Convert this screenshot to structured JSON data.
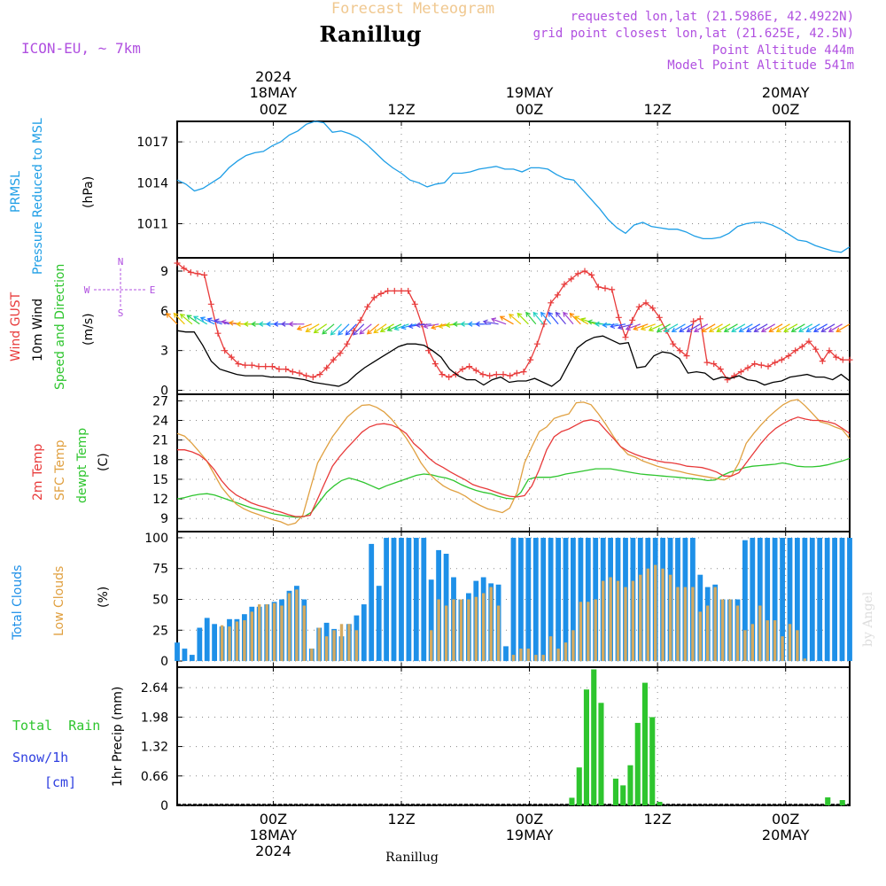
{
  "header": {
    "product": "Forecast Meteogram",
    "location": "Ranillug",
    "model": "ICON-EU, ~ 7km",
    "requested": "requested lon,lat (21.5986E, 42.4922N)",
    "grid_point": "grid point closest lon,lat (21.625E, 42.5N)",
    "point_altitude": "Point Altitude 444m",
    "model_altitude": "Model Point Altitude 541m"
  },
  "footer": {
    "location": "Ranillug",
    "watermark": "by Angel"
  },
  "time_axis": {
    "year": "2024",
    "days": [
      {
        "date": "18MAY",
        "hour": "00Z",
        "show_year": true
      },
      {
        "date": "19MAY",
        "hour": "00Z",
        "show_year": false
      },
      {
        "date": "20MAY",
        "hour": "00Z",
        "show_year": false
      }
    ],
    "noon_label": "12Z",
    "range_hours": [
      -9,
      54
    ]
  },
  "panels": {
    "pressure": {
      "label": "PRMSL",
      "sublabel": "Pressure Reduced to MSL",
      "unit": "(hPa)"
    },
    "wind": {
      "gust_label": "Wind GUST",
      "wind_label": "10m Wind",
      "dir_label": "Speed and Direction",
      "unit": "(m/s)",
      "compass": {
        "n": "N",
        "s": "S",
        "w": "W",
        "e": "E"
      }
    },
    "temp": {
      "t2m_label": "2m Temp",
      "sfc_label": "SFC Temp",
      "dew_label": "dewpt Temp",
      "unit": "(C)"
    },
    "clouds": {
      "total_label": "Total Clouds",
      "low_label": "Low Clouds",
      "unit": "(%)"
    },
    "precip": {
      "rain_label": "Total  Rain",
      "snow_label": "Snow/1h",
      "snow_unit": "[cm]",
      "unit": "1hr Precip (mm)"
    }
  },
  "colors": {
    "pressure": "#1e9ee6",
    "gust": "#e83a3a",
    "wind": "#000000",
    "t2m": "#e83a3a",
    "sfc": "#e0a040",
    "dew": "#2ec52e",
    "total_clouds": "#1e90e8",
    "low_clouds": "#d4aa60",
    "rain": "#2ec52e",
    "purple": "#b050e0",
    "label_blue": "#3040e0"
  },
  "chart_data": [
    {
      "type": "line",
      "title": "PRMSL Pressure Reduced to MSL",
      "ylabel": "(hPa)",
      "ylim": [
        1008.5,
        1018.5
      ],
      "yticks": [
        1011,
        1014,
        1017
      ],
      "x_hours_start": -9,
      "x_step": 1,
      "series": [
        {
          "name": "PRMSL",
          "values": [
            1014.2,
            1013.9,
            1013.4,
            1013.6,
            1014.0,
            1014.4,
            1015.1,
            1015.6,
            1016.0,
            1016.2,
            1016.3,
            1016.7,
            1017.0,
            1017.5,
            1017.8,
            1018.3,
            1018.5,
            1018.4,
            1017.7,
            1017.8,
            1017.6,
            1017.3,
            1016.8,
            1016.2,
            1015.6,
            1015.1,
            1014.7,
            1014.2,
            1014.0,
            1013.7,
            1013.9,
            1014.0,
            1014.7,
            1014.7,
            1014.8,
            1015.0,
            1015.1,
            1015.2,
            1015.0,
            1015.0,
            1014.8,
            1015.1,
            1015.1,
            1015.0,
            1014.6,
            1014.3,
            1014.2,
            1013.5,
            1012.8,
            1012.1,
            1011.3,
            1010.7,
            1010.3,
            1010.9,
            1011.1,
            1010.8,
            1010.7,
            1010.6,
            1010.6,
            1010.4,
            1010.1,
            1009.9,
            1009.9,
            1010.0,
            1010.3,
            1010.8,
            1011.0,
            1011.1,
            1011.1,
            1010.9,
            1010.6,
            1010.2,
            1009.8,
            1009.7,
            1009.4,
            1009.2,
            1009.0,
            1008.9,
            1009.3
          ]
        }
      ]
    },
    {
      "type": "line",
      "title": "Wind GUST / 10m Wind Speed and Direction",
      "ylabel": "(m/s)",
      "ylim": [
        -0.3,
        10
      ],
      "yticks": [
        0,
        3,
        6,
        9
      ],
      "x_hours_start": -9,
      "x_step": 1,
      "series": [
        {
          "name": "Wind GUST",
          "values": [
            9.6,
            9.2,
            8.9,
            8.8,
            8.7,
            6.5,
            4.3,
            3.0,
            2.5,
            2.0,
            1.9,
            1.9,
            1.8,
            1.8,
            1.8,
            1.6,
            1.6,
            1.4,
            1.3,
            1.1,
            1.0,
            1.2,
            1.7,
            2.3,
            2.8,
            3.5,
            4.5,
            5.3,
            6.3,
            7.0,
            7.3,
            7.5,
            7.5,
            7.5,
            7.5,
            6.5,
            5.0,
            3.0,
            2.0,
            1.2,
            1.0,
            1.2,
            1.6,
            1.8,
            1.5,
            1.2,
            1.1,
            1.2,
            1.2,
            1.1,
            1.3,
            1.4,
            2.3,
            3.5,
            5.0,
            6.6,
            7.2,
            8.0,
            8.4,
            8.8,
            9.0,
            8.7,
            7.8,
            7.7,
            7.6,
            5.5,
            4.0,
            5.3,
            6.3,
            6.6,
            6.2,
            5.5,
            4.5,
            3.5,
            3.0,
            2.6,
            5.2,
            5.4,
            2.1,
            2.0,
            1.6,
            0.8,
            1.1,
            1.4,
            1.7,
            2.0,
            1.9,
            1.8,
            2.1,
            2.3,
            2.6,
            3.0,
            3.3,
            3.7,
            3.1,
            2.2,
            3.0,
            2.5,
            2.3,
            2.3
          ]
        },
        {
          "name": "10m Wind",
          "values": [
            4.5,
            4.4,
            4.4,
            3.4,
            2.2,
            1.6,
            1.4,
            1.2,
            1.1,
            1.1,
            1.1,
            1.0,
            1.0,
            1.0,
            0.9,
            0.8,
            0.6,
            0.5,
            0.4,
            0.3,
            0.6,
            1.2,
            1.7,
            2.1,
            2.5,
            2.9,
            3.3,
            3.5,
            3.5,
            3.4,
            3.0,
            2.5,
            1.6,
            1.1,
            0.8,
            0.8,
            0.4,
            0.8,
            1.0,
            0.6,
            0.7,
            0.7,
            0.9,
            0.6,
            0.3,
            0.8,
            2.0,
            3.2,
            3.7,
            4.0,
            4.1,
            3.8,
            3.5,
            3.6,
            1.7,
            1.8,
            2.6,
            2.9,
            2.8,
            2.4,
            1.3,
            1.4,
            1.3,
            0.8,
            1.0,
            0.9,
            1.1,
            0.8,
            0.7,
            0.4,
            0.6,
            0.7,
            1.0,
            1.1,
            1.2,
            1.0,
            1.0,
            0.8,
            1.2,
            0.7
          ]
        },
        {
          "name": "10m Wind Direction (arrow heading, deg)",
          "values": [
            315,
            315,
            310,
            305,
            300,
            295,
            290,
            285,
            280,
            275,
            270,
            270,
            270,
            270,
            270,
            270,
            270,
            270,
            250,
            240,
            235,
            230,
            225,
            225,
            225,
            225,
            230,
            230,
            235,
            240,
            245,
            250,
            255,
            260,
            265,
            260,
            255,
            260,
            265,
            270,
            270,
            270,
            270,
            280,
            290,
            300,
            310,
            315,
            320,
            320,
            320,
            320,
            320,
            320,
            315,
            300,
            290,
            280,
            270,
            265,
            260,
            255,
            250,
            250,
            250,
            245,
            240,
            240,
            240,
            240,
            240,
            240,
            240,
            240,
            240,
            240,
            240,
            240,
            240,
            240,
            240,
            240,
            240,
            240,
            240,
            240,
            240,
            240,
            240,
            240,
            240
          ]
        }
      ]
    },
    {
      "type": "line",
      "title": "2m Temp / SFC Temp / dewpt Temp",
      "ylabel": "(C)",
      "ylim": [
        7,
        28
      ],
      "yticks": [
        9,
        12,
        15,
        18,
        21,
        24,
        27
      ],
      "x_hours_start": -9,
      "x_step": 1,
      "series": [
        {
          "name": "2m Temp",
          "values": [
            19.5,
            19.5,
            19.2,
            18.7,
            17.8,
            16.5,
            14.8,
            13.5,
            12.6,
            12.0,
            11.4,
            11.0,
            10.7,
            10.3,
            10.0,
            9.6,
            9.3,
            9.3,
            9.5,
            12.0,
            14.5,
            17.0,
            18.5,
            19.8,
            21.0,
            22.2,
            23.0,
            23.4,
            23.5,
            23.3,
            22.8,
            22.0,
            20.5,
            19.5,
            18.3,
            17.4,
            16.8,
            16.1,
            15.5,
            14.9,
            14.2,
            13.8,
            13.5,
            13.1,
            12.7,
            12.4,
            12.3,
            12.5,
            14.0,
            16.5,
            19.5,
            21.5,
            22.3,
            22.7,
            23.3,
            23.9,
            24.1,
            23.8,
            22.5,
            21.3,
            20.0,
            19.3,
            18.8,
            18.4,
            18.1,
            17.8,
            17.6,
            17.5,
            17.3,
            17.0,
            16.9,
            16.8,
            16.5,
            16.1,
            15.5,
            15.5,
            16.0,
            17.5,
            19.0,
            20.5,
            21.8,
            22.8,
            23.5,
            24.1,
            24.5,
            24.2,
            24.0,
            24.0,
            23.8,
            23.5,
            22.8,
            22.0
          ]
        },
        {
          "name": "SFC Temp",
          "values": [
            22.0,
            21.6,
            20.5,
            19.2,
            17.8,
            15.8,
            13.8,
            12.4,
            11.2,
            10.5,
            10.0,
            9.6,
            9.2,
            8.8,
            8.5,
            8.0,
            8.3,
            9.5,
            13.5,
            17.5,
            19.5,
            21.5,
            23.0,
            24.5,
            25.5,
            26.3,
            26.4,
            26.0,
            25.3,
            24.2,
            22.8,
            21.3,
            19.5,
            17.5,
            16.0,
            14.9,
            14.0,
            13.4,
            13.0,
            12.4,
            11.6,
            11.0,
            10.5,
            10.2,
            9.9,
            10.6,
            13.0,
            17.5,
            20.0,
            22.3,
            23.0,
            24.3,
            24.7,
            25.0,
            26.7,
            26.8,
            26.4,
            25.0,
            23.4,
            21.6,
            20.0,
            18.8,
            18.4,
            17.8,
            17.4,
            17.0,
            16.7,
            16.4,
            16.2,
            15.9,
            15.7,
            15.5,
            15.3,
            15.1,
            14.9,
            15.5,
            17.5,
            20.5,
            22.0,
            23.3,
            24.5,
            25.5,
            26.4,
            27.0,
            27.2,
            26.2,
            25.0,
            23.8,
            23.5,
            23.0,
            22.6,
            21.2
          ]
        },
        {
          "name": "dewpt Temp",
          "values": [
            12.0,
            12.2,
            12.5,
            12.7,
            12.8,
            12.6,
            12.2,
            11.8,
            11.4,
            11.0,
            10.6,
            10.3,
            10.0,
            9.7,
            9.5,
            9.3,
            9.2,
            9.3,
            10.0,
            11.5,
            13.0,
            14.0,
            14.8,
            15.2,
            14.9,
            14.5,
            14.0,
            13.5,
            14.0,
            14.4,
            14.8,
            15.2,
            15.6,
            15.8,
            15.7,
            15.4,
            15.2,
            14.8,
            14.2,
            13.7,
            13.3,
            13.0,
            12.8,
            12.4,
            12.1,
            12.0,
            13.0,
            15.0,
            15.3,
            15.3,
            15.3,
            15.5,
            15.8,
            16.0,
            16.2,
            16.4,
            16.6,
            16.6,
            16.6,
            16.4,
            16.2,
            16.0,
            15.8,
            15.7,
            15.6,
            15.5,
            15.4,
            15.3,
            15.2,
            15.1,
            15.0,
            14.8,
            14.9,
            15.6,
            16.1,
            16.4,
            16.8,
            17.0,
            17.1,
            17.2,
            17.3,
            17.5,
            17.3,
            17.0,
            16.9,
            16.9,
            17.0,
            17.2,
            17.5,
            17.8,
            18.2
          ]
        }
      ]
    },
    {
      "type": "bar",
      "title": "Total Clouds / Low Clouds",
      "ylabel": "(%)",
      "ylim": [
        -5,
        105
      ],
      "yticks": [
        0,
        25,
        50,
        75,
        100
      ],
      "x_hours_start": -9,
      "x_step": 1,
      "series": [
        {
          "name": "Total Clouds",
          "values": [
            15,
            10,
            5,
            27,
            35,
            30,
            28,
            34,
            34,
            38,
            44,
            44,
            46,
            48,
            50,
            57,
            61,
            50,
            10,
            27,
            31,
            26,
            20,
            30,
            37,
            46,
            95,
            61,
            100,
            100,
            100,
            100,
            100,
            100,
            66,
            90,
            87,
            68,
            50,
            55,
            65,
            68,
            63,
            62,
            12,
            100,
            100,
            100,
            100,
            100,
            100,
            100,
            100,
            100,
            100,
            100,
            100,
            100,
            100,
            100,
            100,
            100,
            100,
            100,
            100,
            100,
            100,
            100,
            100,
            100,
            70,
            60,
            62,
            50,
            50,
            50,
            98,
            100,
            100,
            100,
            100,
            100,
            100,
            100,
            100,
            100,
            100,
            100,
            100,
            100,
            100
          ]
        },
        {
          "name": "Low Clouds",
          "values": [
            0,
            0,
            0,
            0,
            0,
            0,
            29,
            28,
            32,
            33,
            40,
            46,
            46,
            47,
            45,
            55,
            58,
            45,
            10,
            27,
            20,
            25,
            30,
            30,
            25,
            0,
            0,
            0,
            0,
            0,
            0,
            0,
            0,
            0,
            25,
            50,
            45,
            50,
            50,
            50,
            52,
            55,
            60,
            45,
            0,
            5,
            10,
            10,
            5,
            5,
            20,
            10,
            15,
            25,
            48,
            48,
            50,
            65,
            68,
            65,
            60,
            65,
            70,
            75,
            78,
            75,
            70,
            60,
            60,
            60,
            40,
            45,
            60,
            50,
            50,
            45,
            25,
            30,
            45,
            33,
            33,
            20,
            30,
            25,
            2,
            0,
            0,
            0,
            0,
            0,
            0
          ]
        }
      ]
    },
    {
      "type": "bar",
      "title": "1hr Precip",
      "ylabel": "1hr Precip (mm)",
      "ylim": [
        0,
        3.1
      ],
      "yticks": [
        0,
        0.66,
        1.32,
        1.98,
        2.64
      ],
      "yticklabels": [
        "0",
        "0.66",
        "1.32",
        "1.98",
        "2.64"
      ],
      "x_hours_start": -9,
      "x_step": 1,
      "series": [
        {
          "name": "Total Rain",
          "values": [
            0,
            0,
            0,
            0,
            0,
            0,
            0,
            0,
            0,
            0,
            0,
            0,
            0,
            0,
            0,
            0,
            0,
            0,
            0,
            0,
            0,
            0,
            0,
            0,
            0,
            0,
            0,
            0,
            0,
            0,
            0,
            0,
            0,
            0,
            0,
            0,
            0,
            0,
            0,
            0,
            0,
            0,
            0,
            0,
            0,
            0,
            0,
            0,
            0,
            0,
            0,
            0,
            0,
            0,
            0.17,
            0.85,
            2.6,
            3.05,
            2.3,
            0,
            0.6,
            0.45,
            0.9,
            1.85,
            2.75,
            1.98,
            0.08,
            0,
            0,
            0,
            0,
            0,
            0,
            0,
            0,
            0,
            0,
            0,
            0,
            0,
            0,
            0,
            0,
            0,
            0,
            0,
            0,
            0,
            0,
            0.18,
            0,
            0.12,
            0
          ]
        }
      ]
    }
  ]
}
